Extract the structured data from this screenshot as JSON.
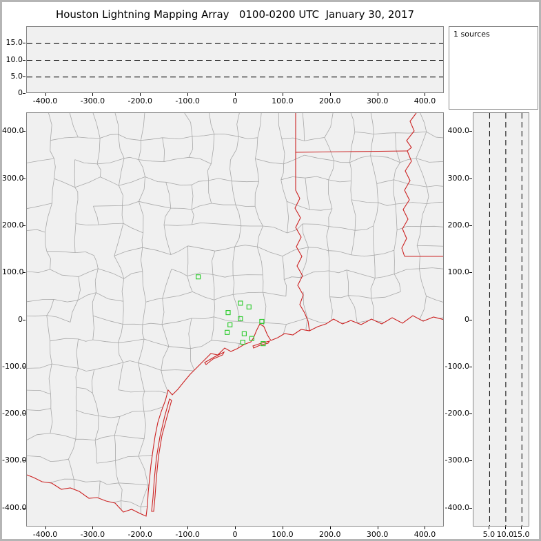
{
  "title": "Houston Lightning Mapping Array   0100-0200 UTC  January 30, 2017",
  "sources_label": "1 sources",
  "colors": {
    "panel_bg": "#f0f0f0",
    "county_line": "#a8a8a8",
    "state_border": "#cc2222",
    "station_marker": "#33cc33",
    "axis_line": "#000000"
  },
  "chart_data": [
    {
      "type": "scatter",
      "name": "altitude-vs-east-west-distance",
      "x_tick_values": [
        -400,
        -300,
        -200,
        -100,
        0,
        100,
        200,
        300,
        400
      ],
      "x_tick_labels": [
        "-400.0",
        "-300.0",
        "-200.0",
        "-100.0",
        "0",
        "100.0",
        "200.0",
        "300.0",
        "400.0"
      ],
      "y_tick_values": [
        15,
        10,
        5,
        0
      ],
      "y_tick_labels": [
        "15.0",
        "10.0",
        "5.0",
        "0"
      ],
      "xlim": [
        -440,
        440
      ],
      "ylim": [
        0,
        20
      ],
      "dashed_altitude_lines_km": [
        5,
        10,
        15
      ],
      "points": [],
      "grid": "dashed-horizontal",
      "legend": "none"
    },
    {
      "type": "scatter",
      "name": "plan-view-map",
      "x_tick_values": [
        -400,
        -300,
        -200,
        -100,
        0,
        100,
        200,
        300,
        400
      ],
      "x_tick_labels": [
        "-400.0",
        "-300.0",
        "-200.0",
        "-100.0",
        "0",
        "100.0",
        "200.0",
        "300.0",
        "400.0"
      ],
      "y_tick_values": [
        400,
        300,
        200,
        100,
        0,
        -100,
        -200,
        -300,
        -400
      ],
      "y_tick_labels": [
        "400.0",
        "300.0",
        "200.0",
        "100.0",
        "0",
        "-100.0",
        "-200.0",
        "-300.0",
        "-400.0"
      ],
      "xlim": [
        -440,
        440
      ],
      "ylim": [
        -440,
        440
      ],
      "stations_km": [
        [
          -79,
          92
        ],
        [
          10,
          36
        ],
        [
          28,
          28
        ],
        [
          -16,
          16
        ],
        [
          10,
          3
        ],
        [
          55,
          -3
        ],
        [
          -12,
          -10
        ],
        [
          -18,
          -26
        ],
        [
          18,
          -29
        ],
        [
          34,
          -39
        ],
        [
          15,
          -47
        ],
        [
          58,
          -50
        ]
      ],
      "map_features": [
        "county-boundaries",
        "state-borders",
        "gulf-coastline",
        "barrier-islands",
        "rio-grande-border"
      ]
    },
    {
      "type": "scatter",
      "name": "altitude-vs-north-south-distance",
      "x_tick_values": [
        5,
        10,
        15
      ],
      "x_tick_labels": [
        "5.0",
        "10.0",
        "15.0"
      ],
      "y_tick_values": [
        400,
        300,
        200,
        100,
        0,
        -100,
        -200,
        -300,
        -400
      ],
      "y_tick_labels": [
        "400.0",
        "300.0",
        "200.0",
        "100.0",
        "0",
        "-100.0",
        "-200.0",
        "-300.0",
        "-400.0"
      ],
      "xlim": [
        0,
        17.5
      ],
      "ylim": [
        -440,
        440
      ],
      "dashed_altitude_lines_km": [
        5,
        10,
        15
      ],
      "points": []
    }
  ]
}
